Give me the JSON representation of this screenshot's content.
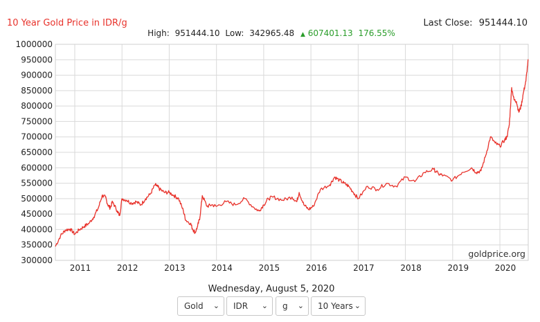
{
  "header": {
    "title": "10 Year Gold Price in IDR/g",
    "last_close_label": "Last Close:",
    "last_close_value": "951444.10",
    "high_label": "High:",
    "high_value": "951444.10",
    "low_label": "Low:",
    "low_value": "342965.48",
    "change_value": "607401.13",
    "change_percent": "176.55%"
  },
  "watermark": "goldprice.org",
  "date_text": "Wednesday, August 5, 2020",
  "controls": {
    "metal": "Gold",
    "currency": "IDR",
    "unit": "g",
    "period": "10 Years"
  },
  "colors": {
    "title": "#e8322b",
    "line": "#e8322b",
    "change_up": "#2a9d2a",
    "grid": "#d9d9d9"
  },
  "chart_data": {
    "type": "line",
    "title": "10 Year Gold Price in IDR/g",
    "xlabel": "",
    "ylabel": "",
    "xlim": [
      2010.59,
      2020.6
    ],
    "ylim": [
      300000,
      1000000
    ],
    "y_ticks": [
      300000,
      350000,
      400000,
      450000,
      500000,
      550000,
      600000,
      650000,
      700000,
      750000,
      800000,
      850000,
      900000,
      950000,
      1000000
    ],
    "x_ticks": [
      2011,
      2012,
      2013,
      2014,
      2015,
      2016,
      2017,
      2018,
      2019,
      2020
    ],
    "grid": true,
    "legend": "none",
    "series": [
      {
        "x": [
          2010.59,
          2010.7,
          2010.8,
          2010.9,
          2011.0,
          2011.1,
          2011.2,
          2011.3,
          2011.4,
          2011.5,
          2011.58,
          2011.65,
          2011.7,
          2011.75,
          2011.8,
          2011.9,
          2011.95,
          2012.0,
          2012.1,
          2012.2,
          2012.3,
          2012.4,
          2012.5,
          2012.6,
          2012.7,
          2012.75,
          2012.8,
          2012.9,
          2013.0,
          2013.1,
          2013.2,
          2013.3,
          2013.35,
          2013.45,
          2013.5,
          2013.55,
          2013.6,
          2013.65,
          2013.7,
          2013.8,
          2013.9,
          2014.0,
          2014.2,
          2014.4,
          2014.6,
          2014.8,
          2014.9,
          2015.0,
          2015.1,
          2015.2,
          2015.4,
          2015.6,
          2015.7,
          2015.75,
          2015.85,
          2015.95,
          2016.05,
          2016.2,
          2016.4,
          2016.5,
          2016.6,
          2016.7,
          2016.8,
          2016.9,
          2017.0,
          2017.2,
          2017.4,
          2017.6,
          2017.8,
          2018.0,
          2018.2,
          2018.4,
          2018.6,
          2018.7,
          2018.8,
          2019.0,
          2019.2,
          2019.4,
          2019.5,
          2019.6,
          2019.7,
          2019.8,
          2019.9,
          2020.0,
          2020.1,
          2020.15,
          2020.2,
          2020.25,
          2020.3,
          2020.35,
          2020.4,
          2020.45,
          2020.5,
          2020.55,
          2020.6
        ],
        "y": [
          345000,
          380000,
          398000,
          402000,
          385000,
          400000,
          410000,
          420000,
          440000,
          470000,
          510000,
          505000,
          480000,
          470000,
          490000,
          460000,
          445000,
          500000,
          495000,
          485000,
          490000,
          480000,
          500000,
          515000,
          545000,
          540000,
          530000,
          520000,
          520000,
          510000,
          500000,
          460000,
          430000,
          420000,
          400000,
          390000,
          410000,
          440000,
          510000,
          475000,
          480000,
          475000,
          490000,
          480000,
          500000,
          470000,
          460000,
          480000,
          500000,
          505000,
          495000,
          505000,
          490000,
          520000,
          480000,
          465000,
          475000,
          530000,
          545000,
          570000,
          560000,
          550000,
          540000,
          520000,
          500000,
          540000,
          530000,
          550000,
          540000,
          570000,
          555000,
          585000,
          595000,
          580000,
          575000,
          560000,
          585000,
          600000,
          585000,
          590000,
          640000,
          700000,
          680000,
          670000,
          690000,
          700000,
          740000,
          860000,
          820000,
          815000,
          780000,
          800000,
          845000,
          880000,
          951444
        ]
      }
    ]
  }
}
